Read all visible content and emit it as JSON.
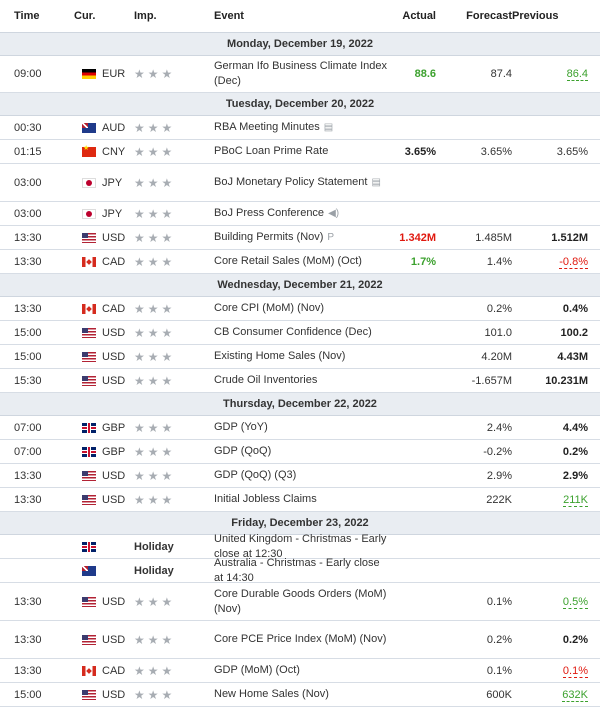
{
  "header": {
    "time": "Time",
    "cur": "Cur.",
    "imp": "Imp.",
    "event": "Event",
    "actual": "Actual",
    "forecast": "Forecast",
    "previous": "Previous"
  },
  "days": [
    {
      "label": "Monday, December 19, 2022"
    },
    {
      "label": "Tuesday, December 20, 2022"
    },
    {
      "label": "Wednesday, December 21, 2022"
    },
    {
      "label": "Thursday, December 22, 2022"
    },
    {
      "label": "Friday, December 23, 2022"
    }
  ],
  "rows": [
    {
      "time": "09:00",
      "flag": "de",
      "cur": "EUR",
      "event": "German Ifo Business Climate Index (Dec)",
      "actual": "88.6",
      "actual_style": "green",
      "forecast": "87.4",
      "previous": "86.4",
      "prev_style": "ul-green",
      "icon": ""
    },
    {
      "time": "00:30",
      "flag": "au",
      "cur": "AUD",
      "event": "RBA Meeting Minutes",
      "actual": "",
      "actual_style": "",
      "forecast": "",
      "previous": "",
      "prev_style": "",
      "icon": "doc-icon"
    },
    {
      "time": "01:15",
      "flag": "cn",
      "cur": "CNY",
      "event": "PBoC Loan Prime Rate",
      "actual": "3.65%",
      "actual_style": "bold",
      "forecast": "3.65%",
      "previous": "3.65%",
      "prev_style": "",
      "icon": ""
    },
    {
      "time": "03:00",
      "flag": "jp",
      "cur": "JPY",
      "event": "BoJ Monetary Policy Statement",
      "actual": "",
      "actual_style": "",
      "forecast": "",
      "previous": "",
      "prev_style": "",
      "icon": "doc-icon"
    },
    {
      "time": "03:00",
      "flag": "jp",
      "cur": "JPY",
      "event": "BoJ Press Conference",
      "actual": "",
      "actual_style": "",
      "forecast": "",
      "previous": "",
      "prev_style": "",
      "icon": "speaker-icon"
    },
    {
      "time": "13:30",
      "flag": "us",
      "cur": "USD",
      "event": "Building Permits (Nov)",
      "actual": "1.342M",
      "actual_style": "red",
      "forecast": "1.485M",
      "previous": "1.512M",
      "prev_style": "bold",
      "icon": "preliminary-icon"
    },
    {
      "time": "13:30",
      "flag": "ca",
      "cur": "CAD",
      "event": "Core Retail Sales (MoM) (Oct)",
      "actual": "1.7%",
      "actual_style": "green",
      "forecast": "1.4%",
      "previous": "-0.8%",
      "prev_style": "ul-red",
      "icon": ""
    },
    {
      "time": "13:30",
      "flag": "ca",
      "cur": "CAD",
      "event": "Core CPI (MoM) (Nov)",
      "actual": "",
      "actual_style": "",
      "forecast": "0.2%",
      "previous": "0.4%",
      "prev_style": "bold",
      "icon": ""
    },
    {
      "time": "15:00",
      "flag": "us",
      "cur": "USD",
      "event": "CB Consumer Confidence (Dec)",
      "actual": "",
      "actual_style": "",
      "forecast": "101.0",
      "previous": "100.2",
      "prev_style": "bold",
      "icon": ""
    },
    {
      "time": "15:00",
      "flag": "us",
      "cur": "USD",
      "event": "Existing Home Sales (Nov)",
      "actual": "",
      "actual_style": "",
      "forecast": "4.20M",
      "previous": "4.43M",
      "prev_style": "bold",
      "icon": ""
    },
    {
      "time": "15:30",
      "flag": "us",
      "cur": "USD",
      "event": "Crude Oil Inventories",
      "actual": "",
      "actual_style": "",
      "forecast": "-1.657M",
      "previous": "10.231M",
      "prev_style": "bold",
      "icon": ""
    },
    {
      "time": "07:00",
      "flag": "gb",
      "cur": "GBP",
      "event": "GDP (YoY)",
      "actual": "",
      "actual_style": "",
      "forecast": "2.4%",
      "previous": "4.4%",
      "prev_style": "bold",
      "icon": ""
    },
    {
      "time": "07:00",
      "flag": "gb",
      "cur": "GBP",
      "event": "GDP (QoQ)",
      "actual": "",
      "actual_style": "",
      "forecast": "-0.2%",
      "previous": "0.2%",
      "prev_style": "bold",
      "icon": ""
    },
    {
      "time": "13:30",
      "flag": "us",
      "cur": "USD",
      "event": "GDP (QoQ) (Q3)",
      "actual": "",
      "actual_style": "",
      "forecast": "2.9%",
      "previous": "2.9%",
      "prev_style": "bold",
      "icon": ""
    },
    {
      "time": "13:30",
      "flag": "us",
      "cur": "USD",
      "event": "Initial Jobless Claims",
      "actual": "",
      "actual_style": "",
      "forecast": "222K",
      "previous": "211K",
      "prev_style": "ul-green",
      "icon": ""
    },
    {
      "time": "",
      "flag": "gb",
      "cur": "",
      "holiday": "Holiday",
      "event": "United Kingdom - Christmas - Early close at 12:30",
      "actual": "",
      "actual_style": "",
      "forecast": "",
      "previous": "",
      "prev_style": "",
      "icon": ""
    },
    {
      "time": "",
      "flag": "au",
      "cur": "",
      "holiday": "Holiday",
      "event": "Australia - Christmas - Early close at 14:30",
      "actual": "",
      "actual_style": "",
      "forecast": "",
      "previous": "",
      "prev_style": "",
      "icon": ""
    },
    {
      "time": "13:30",
      "flag": "us",
      "cur": "USD",
      "event": "Core Durable Goods Orders (MoM) (Nov)",
      "actual": "",
      "actual_style": "",
      "forecast": "0.1%",
      "previous": "0.5%",
      "prev_style": "ul-green",
      "icon": ""
    },
    {
      "time": "13:30",
      "flag": "us",
      "cur": "USD",
      "event": "Core PCE Price Index (MoM) (Nov)",
      "actual": "",
      "actual_style": "",
      "forecast": "0.2%",
      "previous": "0.2%",
      "prev_style": "bold",
      "icon": ""
    },
    {
      "time": "13:30",
      "flag": "ca",
      "cur": "CAD",
      "event": "GDP (MoM) (Oct)",
      "actual": "",
      "actual_style": "",
      "forecast": "0.1%",
      "previous": "0.1%",
      "prev_style": "ul-red",
      "icon": ""
    },
    {
      "time": "15:00",
      "flag": "us",
      "cur": "USD",
      "event": "New Home Sales (Nov)",
      "actual": "",
      "actual_style": "",
      "forecast": "600K",
      "previous": "632K",
      "prev_style": "ul-green",
      "icon": ""
    }
  ]
}
